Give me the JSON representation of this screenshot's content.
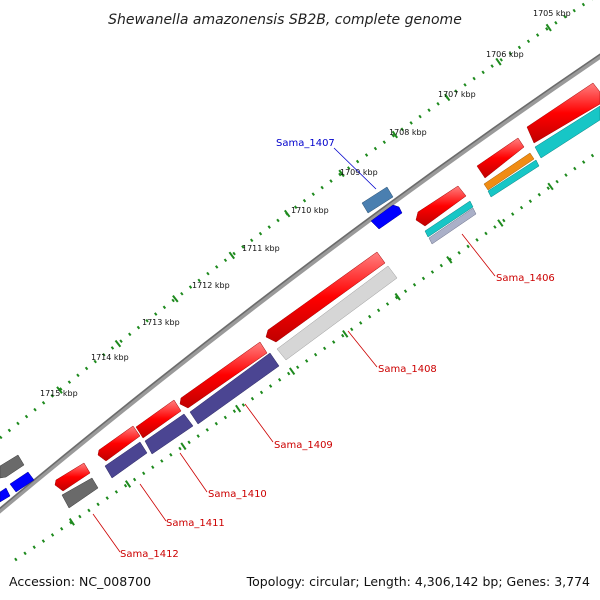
{
  "title": "Shewanella amazonensis SB2B, complete genome",
  "footer": {
    "accession": "Accession: NC_008700",
    "stats": "Topology: circular; Length: 4,306,142 bp; Genes: 3,774"
  },
  "scale_labels": [
    "1705 kbp",
    "1706 kbp",
    "1707 kbp",
    "1708 kbp",
    "1709 kbp",
    "1710 kbp",
    "1711 kbp",
    "1712 kbp",
    "1713 kbp",
    "1714 kbp",
    "1715 kbp"
  ],
  "gene_labels": [
    {
      "text": "Sama_1407",
      "color": "#0000cc"
    },
    {
      "text": "Sama_1406",
      "color": "#cc0000"
    },
    {
      "text": "Sama_1408",
      "color": "#cc0000"
    },
    {
      "text": "Sama_1409",
      "color": "#cc0000"
    },
    {
      "text": "Sama_1410",
      "color": "#cc0000"
    },
    {
      "text": "Sama_1411",
      "color": "#cc0000"
    },
    {
      "text": "Sama_1412",
      "color": "#cc0000"
    }
  ],
  "colors": {
    "backbone": "#8a8a8a",
    "cds": "#ff0000",
    "rna": "#d6d6d6",
    "blue": "#0000ff",
    "steel": "#4a7fb0",
    "navy": "#4b4592",
    "cyan": "#17c6c6",
    "orange": "#f08c14",
    "gray": "#666666",
    "ticks": "#1e8a1e"
  }
}
